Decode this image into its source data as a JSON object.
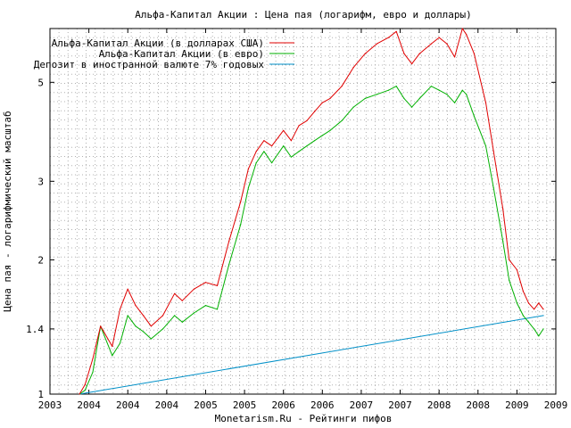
{
  "chart_data": {
    "type": "line",
    "title": "Альфа-Капитал Акции : Цена пая (логарифм, евро и доллары)",
    "xlabel": "Monetarism.Ru - Рейтинги пифов",
    "ylabel": "Цена пая - логарифмический масштаб",
    "y_scale": "log",
    "ylim": [
      1,
      6.6
    ],
    "xlim": [
      2003.0,
      2009.5
    ],
    "grid": true,
    "legend_position": "top-left",
    "x_tick_labels": [
      "2003",
      "2004",
      "2004",
      "2004",
      "2005",
      "2005",
      "2006",
      "2006",
      "2007",
      "2007",
      "2008",
      "2008",
      "2009",
      "2009"
    ],
    "y_ticks": [
      1,
      1.4,
      2,
      3,
      5
    ],
    "y_tick_labels": [
      "1",
      "1.4",
      "2",
      "3",
      "5"
    ],
    "series": [
      {
        "name": "Альфа-Капитал Акции (в долларах США)",
        "color": "#e00000",
        "x": [
          2003.38,
          2003.45,
          2003.55,
          2003.65,
          2003.8,
          2003.9,
          2004.0,
          2004.1,
          2004.2,
          2004.3,
          2004.45,
          2004.6,
          2004.7,
          2004.85,
          2005.0,
          2005.15,
          2005.3,
          2005.45,
          2005.55,
          2005.65,
          2005.75,
          2005.85,
          2006.0,
          2006.1,
          2006.2,
          2006.3,
          2006.4,
          2006.5,
          2006.6,
          2006.75,
          2006.9,
          2007.05,
          2007.2,
          2007.35,
          2007.45,
          2007.55,
          2007.65,
          2007.75,
          2007.9,
          2008.0,
          2008.1,
          2008.2,
          2008.3,
          2008.35,
          2008.45,
          2008.6,
          2008.7,
          2008.82,
          2008.9,
          2009.0,
          2009.08,
          2009.15,
          2009.22,
          2009.28,
          2009.34
        ],
        "values": [
          1.0,
          1.05,
          1.2,
          1.42,
          1.28,
          1.55,
          1.72,
          1.58,
          1.5,
          1.42,
          1.5,
          1.68,
          1.62,
          1.72,
          1.78,
          1.75,
          2.2,
          2.7,
          3.2,
          3.5,
          3.7,
          3.6,
          3.9,
          3.7,
          4.0,
          4.1,
          4.3,
          4.5,
          4.6,
          4.9,
          5.4,
          5.8,
          6.1,
          6.3,
          6.5,
          5.8,
          5.5,
          5.8,
          6.1,
          6.3,
          6.1,
          5.7,
          6.6,
          6.4,
          5.8,
          4.5,
          3.5,
          2.6,
          2.0,
          1.9,
          1.7,
          1.6,
          1.55,
          1.6,
          1.55
        ]
      },
      {
        "name": "Альфа-Капитал Акции (в евро)",
        "color": "#00b000",
        "x": [
          2003.38,
          2003.45,
          2003.55,
          2003.65,
          2003.8,
          2003.9,
          2004.0,
          2004.1,
          2004.2,
          2004.3,
          2004.45,
          2004.6,
          2004.7,
          2004.85,
          2005.0,
          2005.15,
          2005.3,
          2005.45,
          2005.55,
          2005.65,
          2005.75,
          2005.85,
          2006.0,
          2006.1,
          2006.2,
          2006.3,
          2006.4,
          2006.5,
          2006.6,
          2006.75,
          2006.9,
          2007.05,
          2007.2,
          2007.35,
          2007.45,
          2007.55,
          2007.65,
          2007.75,
          2007.9,
          2008.0,
          2008.1,
          2008.2,
          2008.3,
          2008.35,
          2008.45,
          2008.6,
          2008.7,
          2008.82,
          2008.9,
          2009.0,
          2009.08,
          2009.15,
          2009.22,
          2009.28,
          2009.34
        ],
        "values": [
          1.0,
          1.02,
          1.12,
          1.42,
          1.22,
          1.3,
          1.5,
          1.42,
          1.38,
          1.33,
          1.4,
          1.5,
          1.45,
          1.52,
          1.58,
          1.55,
          1.95,
          2.4,
          2.9,
          3.3,
          3.5,
          3.3,
          3.6,
          3.4,
          3.5,
          3.6,
          3.7,
          3.8,
          3.9,
          4.1,
          4.4,
          4.6,
          4.7,
          4.8,
          4.9,
          4.6,
          4.4,
          4.6,
          4.9,
          4.8,
          4.7,
          4.5,
          4.8,
          4.7,
          4.2,
          3.6,
          2.9,
          2.2,
          1.8,
          1.6,
          1.5,
          1.45,
          1.4,
          1.35,
          1.4
        ]
      },
      {
        "name": "Депозит в иностранной валюте 7% годовых",
        "color": "#0090c8",
        "x": [
          2003.38,
          2009.34
        ],
        "values": [
          1.0,
          1.5
        ]
      }
    ],
    "footer_text": "Monetarism.Ru - Рейтинги пифов"
  }
}
